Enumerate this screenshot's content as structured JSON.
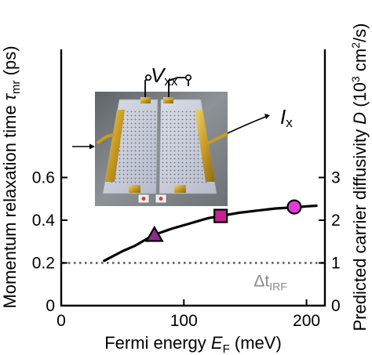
{
  "chart_data": {
    "type": "line",
    "xlabel_main": "Fermi energy ",
    "xlabel_var": "E",
    "xlabel_sub": "F",
    "xlabel_unit": " (meV)",
    "ylabel_main": "Momentum relaxation time ",
    "ylabel_var": "τ",
    "ylabel_sub": "mr",
    "ylabel_unit": " (ps)",
    "y2label_main": "Predicted carrier diffusivity ",
    "y2label_var": "D",
    "y2label_open": " (10",
    "y2label_exp": "3",
    "y2label_mid": " cm",
    "y2label_exp2": "2",
    "y2label_close": "/s)",
    "xlim": [
      0,
      215
    ],
    "ylim": [
      0,
      1.2
    ],
    "y2lim": [
      0,
      6
    ],
    "x_ticks": [
      0,
      100,
      200
    ],
    "y_ticks": [
      0,
      0.2,
      0.4,
      0.6
    ],
    "y2_ticks": [
      0,
      1,
      2,
      3
    ],
    "series": [
      {
        "x": [
          35,
          40,
          50,
          60,
          75,
          90,
          105,
          120,
          130,
          145,
          160,
          175,
          190,
          200,
          208
        ],
        "y": [
          0.21,
          0.225,
          0.255,
          0.28,
          0.33,
          0.36,
          0.385,
          0.41,
          0.42,
          0.435,
          0.445,
          0.455,
          0.46,
          0.465,
          0.468
        ]
      }
    ],
    "markers": [
      {
        "shape": "triangle",
        "x": 76,
        "y": 0.33,
        "color": "#8e2a8e"
      },
      {
        "shape": "square",
        "x": 130,
        "y": 0.42,
        "color": "#c81f95"
      },
      {
        "shape": "circle",
        "x": 190,
        "y": 0.462,
        "color": "#e23bd8"
      }
    ],
    "reference_line": {
      "y": 0.2,
      "label_main": "Δt",
      "label_sub": "IRF",
      "color": "#8a8a8a"
    },
    "inset": {
      "voltage_label": "V",
      "voltage_sub": "xx",
      "current_label": "I",
      "current_sub": "x"
    }
  }
}
